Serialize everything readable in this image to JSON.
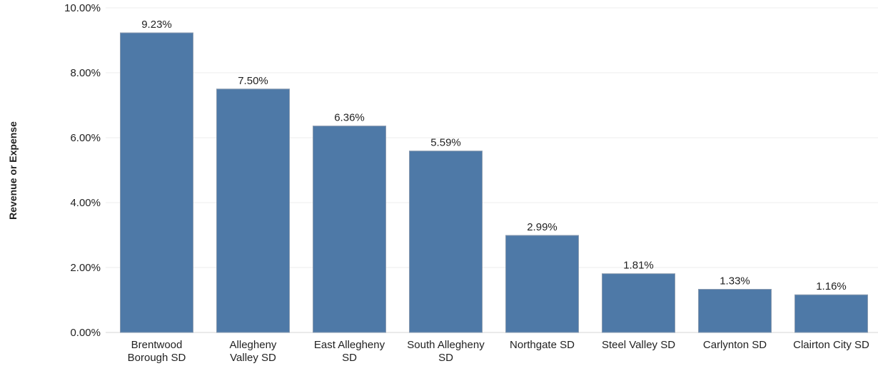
{
  "chart_data": {
    "type": "bar",
    "title": "",
    "xlabel": "",
    "ylabel": "Revenue or Expense",
    "ylim": [
      0,
      10
    ],
    "y_ticks": [
      {
        "value": 0,
        "label": "0.00%"
      },
      {
        "value": 2,
        "label": "2.00%"
      },
      {
        "value": 4,
        "label": "4.00%"
      },
      {
        "value": 6,
        "label": "6.00%"
      },
      {
        "value": 8,
        "label": "8.00%"
      },
      {
        "value": 10,
        "label": "10.00%"
      }
    ],
    "categories": [
      [
        "Brentwood",
        "Borough SD"
      ],
      [
        "Allegheny",
        "Valley SD"
      ],
      [
        "East Allegheny",
        "SD"
      ],
      [
        "South Allegheny",
        "SD"
      ],
      [
        "Northgate SD"
      ],
      [
        "Steel Valley SD"
      ],
      [
        "Carlynton SD"
      ],
      [
        "Clairton City SD"
      ]
    ],
    "values": [
      9.23,
      7.5,
      6.36,
      5.59,
      2.99,
      1.81,
      1.33,
      1.16
    ],
    "data_labels": [
      "9.23%",
      "7.50%",
      "6.36%",
      "5.59%",
      "2.99%",
      "1.81%",
      "1.33%",
      "1.16%"
    ],
    "bar_color": "#4e79a7",
    "grid": true,
    "legend": "none"
  }
}
